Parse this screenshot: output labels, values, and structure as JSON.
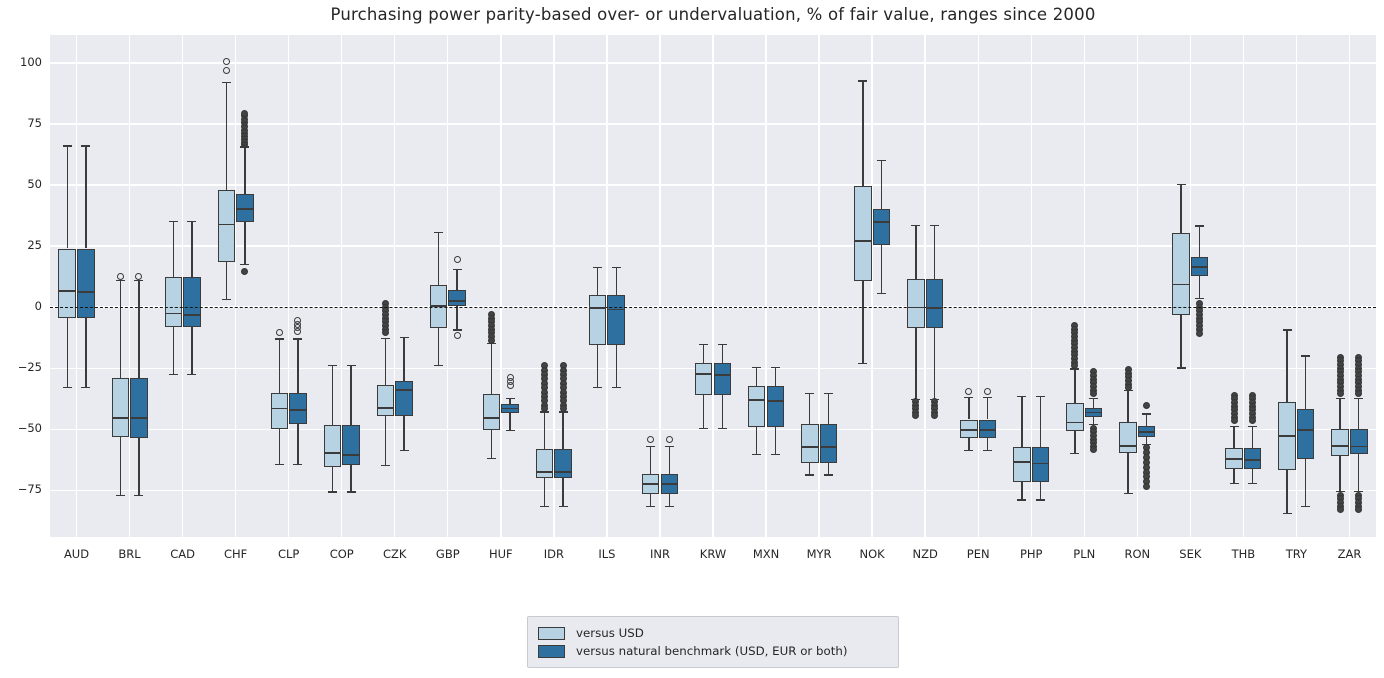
{
  "chart_data": {
    "type": "boxplot",
    "title": "Purchasing power parity-based over- or undervaluation, % of fair value, ranges since 2000",
    "categories": [
      "AUD",
      "BRL",
      "CAD",
      "CHF",
      "CLP",
      "COP",
      "CZK",
      "GBP",
      "HUF",
      "IDR",
      "ILS",
      "INR",
      "KRW",
      "MXN",
      "MYR",
      "NOK",
      "NZD",
      "PEN",
      "PHP",
      "PLN",
      "RON",
      "SEK",
      "THB",
      "TRY",
      "ZAR"
    ],
    "ylabel": "",
    "xlabel": "",
    "yticks": [
      100,
      75,
      50,
      25,
      0,
      -25,
      -50,
      -75
    ],
    "ylim": [
      -94.1,
      111.4
    ],
    "zero_line": 0,
    "grid": true,
    "legend_position": "bottom-center",
    "plot_background": "#eaeaf1",
    "grid_color": "#ffffff",
    "box_edge_color": "#3b3b3b",
    "series": [
      {
        "name": "versus USD",
        "color": "#b7d2e2",
        "boxes": [
          {
            "lo": -33,
            "q1": -4.6,
            "med": 6.5,
            "q3": 24,
            "hi": 66,
            "outliers": []
          },
          {
            "lo": -77,
            "q1": -53,
            "med": -45.5,
            "q3": -29,
            "hi": 11,
            "outliers": [
              12.6
            ]
          },
          {
            "lo": -27.5,
            "q1": -8.2,
            "med": -2.6,
            "q3": 12.2,
            "hi": 35,
            "outliers": []
          },
          {
            "lo": 3,
            "q1": 18.6,
            "med": 33.8,
            "q3": 47.9,
            "hi": 92,
            "outliers": [
              97,
              100.6
            ]
          },
          {
            "lo": -64.5,
            "q1": -50,
            "med": -41.5,
            "q3": -35,
            "hi": -13,
            "outliers": [
              -10.3
            ]
          },
          {
            "lo": -75.7,
            "q1": -65.4,
            "med": -59.8,
            "q3": -48.4,
            "hi": -23.8,
            "outliers": []
          },
          {
            "lo": -64.8,
            "q1": -44.7,
            "med": -41.3,
            "q3": -31.7,
            "hi": -12.8,
            "outliers": [
              1.5,
              0,
              -1.5,
              -3,
              -4.5,
              -6,
              -7.5,
              -9,
              -10.5
            ]
          },
          {
            "lo": -24,
            "q1": -8.6,
            "med": 0.5,
            "q3": 9.2,
            "hi": 30.5,
            "outliers": []
          },
          {
            "lo": -62,
            "q1": -50.5,
            "med": -45.5,
            "q3": -35.5,
            "hi": -15,
            "outliers": [
              -3,
              -4.5,
              -6,
              -7.5,
              -9,
              -10.5,
              -12,
              -13.5
            ]
          },
          {
            "lo": -81.5,
            "q1": -70,
            "med": -67.5,
            "q3": -58,
            "hi": -43,
            "outliers": [
              -24,
              -25.8,
              -27.6,
              -29.4,
              -31.2,
              -33,
              -34.8,
              -36.6,
              -38.4,
              -40.2,
              -41.5
            ]
          },
          {
            "lo": -33,
            "q1": -15.3,
            "med": -0.3,
            "q3": 5.1,
            "hi": 16.3,
            "outliers": []
          },
          {
            "lo": -81.5,
            "q1": -76.4,
            "med": -72.4,
            "q3": -68.4,
            "hi": -57,
            "outliers": [
              -54
            ]
          },
          {
            "lo": -49.6,
            "q1": -36.1,
            "med": -27.3,
            "q3": -22.8,
            "hi": -15.3,
            "outliers": []
          },
          {
            "lo": -60.3,
            "q1": -49,
            "med": -38.1,
            "q3": -32.1,
            "hi": -24.8,
            "outliers": []
          },
          {
            "lo": -68.8,
            "q1": -64,
            "med": -57.2,
            "q3": -47.9,
            "hi": -35.3,
            "outliers": []
          },
          {
            "lo": -23,
            "q1": 10.5,
            "med": 27.2,
            "q3": 49.4,
            "hi": 92.5,
            "outliers": []
          },
          {
            "lo": -37.8,
            "q1": -8.6,
            "med": -0.2,
            "q3": 11.6,
            "hi": 33.4,
            "outliers": [
              -38.8,
              -40.2,
              -41.6,
              -43,
              -44.3
            ]
          },
          {
            "lo": -58.6,
            "q1": -53.4,
            "med": -50.2,
            "q3": -46,
            "hi": -37,
            "outliers": [
              -34.4
            ]
          },
          {
            "lo": -79,
            "q1": -71.7,
            "med": -63.5,
            "q3": -57.2,
            "hi": -36.7,
            "outliers": []
          },
          {
            "lo": -59.8,
            "q1": -50.8,
            "med": -47.2,
            "q3": -39.4,
            "hi": -25.3,
            "outliers": [
              -7.5,
              -9,
              -10.5,
              -12,
              -13.5,
              -15,
              -16.5,
              -18,
              -19.5,
              -21,
              -22.5,
              -24
            ]
          },
          {
            "lo": -76.3,
            "q1": -59.8,
            "med": -56.9,
            "q3": -47.2,
            "hi": -34.1,
            "outliers": [
              -25.5,
              -27,
              -28.5,
              -30,
              -31.5,
              -33
            ]
          },
          {
            "lo": -24.9,
            "q1": -3.3,
            "med": 9.3,
            "q3": 30.4,
            "hi": 50.1,
            "outliers": []
          },
          {
            "lo": -72.3,
            "q1": -66.3,
            "med": -62.3,
            "q3": -57.7,
            "hi": -48.8,
            "outliers": [
              -36,
              -37.5,
              -39,
              -40.5,
              -42,
              -43.5,
              -45,
              -46.5
            ]
          },
          {
            "lo": -84.4,
            "q1": -66.7,
            "med": -52.7,
            "q3": -38.9,
            "hi": -9.3,
            "outliers": []
          },
          {
            "lo": -75.5,
            "q1": -61,
            "med": -56.9,
            "q3": -49.8,
            "hi": -37.4,
            "outliers": [
              -20.5,
              -22,
              -23.5,
              -25,
              -26.5,
              -28,
              -29.5,
              -31,
              -32.5,
              -34,
              -35.5,
              -77,
              -78.5,
              -80,
              -81.5,
              -83
            ]
          }
        ]
      },
      {
        "name": "versus natural benchmark (USD, EUR or both)",
        "color": "#2e70a0",
        "boxes": [
          {
            "lo": -33,
            "q1": -4.6,
            "med": 6.3,
            "q3": 24,
            "hi": 66,
            "outliers": []
          },
          {
            "lo": -77,
            "q1": -53.5,
            "med": -45.5,
            "q3": -29,
            "hi": 11,
            "outliers": [
              12.6
            ]
          },
          {
            "lo": -27.5,
            "q1": -8.2,
            "med": -3.2,
            "q3": 12.2,
            "hi": 35,
            "outliers": []
          },
          {
            "lo": 17.5,
            "q1": 34.8,
            "med": 40.2,
            "q3": 46.3,
            "hi": 65.5,
            "outliers": [
              14.5,
              66.5,
              67.5,
              68.5,
              69.7,
              71,
              72.5,
              74,
              75.5,
              77,
              78.3,
              79.4
            ]
          },
          {
            "lo": -64.5,
            "q1": -48,
            "med": -42,
            "q3": -35,
            "hi": -13,
            "outliers": [
              -5.5,
              -7,
              -8.5,
              -10
            ]
          },
          {
            "lo": -75.7,
            "q1": -64.8,
            "med": -60.5,
            "q3": -48.4,
            "hi": -23.8,
            "outliers": []
          },
          {
            "lo": -58.6,
            "q1": -44.7,
            "med": -34,
            "q3": -30.4,
            "hi": -12.4,
            "outliers": []
          },
          {
            "lo": -9.3,
            "q1": 0.4,
            "med": 2.6,
            "q3": 7,
            "hi": 15.5,
            "outliers": [
              19.5,
              -11.5
            ]
          },
          {
            "lo": -50.5,
            "q1": -43.5,
            "med": -41.5,
            "q3": -39.5,
            "hi": -37.3,
            "outliers": [
              -28.7,
              -30.3,
              -31.9
            ]
          },
          {
            "lo": -81.5,
            "q1": -70,
            "med": -67.5,
            "q3": -58,
            "hi": -43,
            "outliers": [
              -24,
              -25.8,
              -27.6,
              -29.4,
              -31.2,
              -33,
              -34.8,
              -36.6,
              -38.4,
              -40.2,
              -41.5
            ]
          },
          {
            "lo": -33,
            "q1": -15.3,
            "med": -1,
            "q3": 5.1,
            "hi": 16.3,
            "outliers": []
          },
          {
            "lo": -81.5,
            "q1": -76.4,
            "med": -72.4,
            "q3": -68.4,
            "hi": -57,
            "outliers": [
              -54
            ]
          },
          {
            "lo": -49.6,
            "q1": -36.1,
            "med": -27.7,
            "q3": -22.8,
            "hi": -15.3,
            "outliers": []
          },
          {
            "lo": -60.3,
            "q1": -49,
            "med": -38.5,
            "q3": -32.1,
            "hi": -24.8,
            "outliers": []
          },
          {
            "lo": -68.8,
            "q1": -64,
            "med": -57.2,
            "q3": -47.9,
            "hi": -35.3,
            "outliers": []
          },
          {
            "lo": 5.5,
            "q1": 25.3,
            "med": 34.8,
            "q3": 40.2,
            "hi": 60,
            "outliers": []
          },
          {
            "lo": -37.8,
            "q1": -8.6,
            "med": -0.3,
            "q3": 11.6,
            "hi": 33.4,
            "outliers": [
              -38.8,
              -40.2,
              -41.6,
              -43,
              -44.3
            ]
          },
          {
            "lo": -58.6,
            "q1": -53.4,
            "med": -50.4,
            "q3": -46,
            "hi": -37,
            "outliers": [
              -34.4
            ]
          },
          {
            "lo": -79,
            "q1": -71.7,
            "med": -64,
            "q3": -57.2,
            "hi": -36.7,
            "outliers": []
          },
          {
            "lo": -48,
            "q1": -45.1,
            "med": -43.1,
            "q3": -41.1,
            "hi": -37.3,
            "outliers": [
              -26.5,
              -28,
              -29.5,
              -31,
              -32.5,
              -34,
              -35.5,
              -49.5,
              -51,
              -52.5,
              -54,
              -55.5,
              -57,
              -58.3
            ]
          },
          {
            "lo": -56.3,
            "q1": -53,
            "med": -51,
            "q3": -48.8,
            "hi": -43.8,
            "outliers": [
              -40.2,
              -57.5,
              -59.5,
              -61.5,
              -63.5,
              -65.5,
              -67.5,
              -69.5,
              -71.5,
              -73.5
            ]
          },
          {
            "lo": 3.5,
            "q1": 12.7,
            "med": 16.3,
            "q3": 20.7,
            "hi": 33.2,
            "outliers": [
              1.5,
              0,
              -1.5,
              -3,
              -4.5,
              -6,
              -7.5,
              -9,
              -10.6
            ]
          },
          {
            "lo": -72.3,
            "q1": -66.3,
            "med": -62.6,
            "q3": -57.7,
            "hi": -48.8,
            "outliers": [
              -36,
              -37.5,
              -39,
              -40.5,
              -42,
              -43.5,
              -45,
              -46.5
            ]
          },
          {
            "lo": -81.7,
            "q1": -62.3,
            "med": -50.2,
            "q3": -41.5,
            "hi": -20,
            "outliers": []
          },
          {
            "lo": -75.5,
            "q1": -60.3,
            "med": -57,
            "q3": -49.8,
            "hi": -37.4,
            "outliers": [
              -20.5,
              -22,
              -23.5,
              -25,
              -26.5,
              -28,
              -29.5,
              -31,
              -32.5,
              -34,
              -35.5,
              -77,
              -78.5,
              -80,
              -81.5,
              -83
            ]
          }
        ]
      }
    ]
  }
}
